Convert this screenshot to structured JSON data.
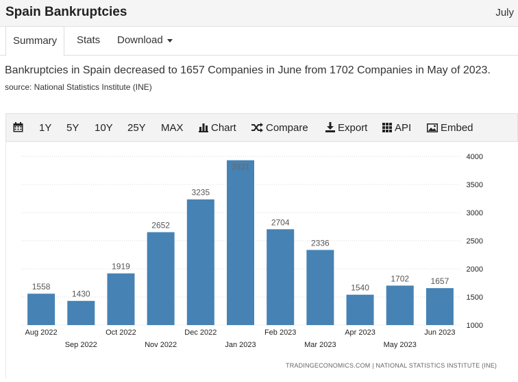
{
  "header": {
    "title": "Spain Bankruptcies",
    "date": "July"
  },
  "tabs": [
    {
      "label": "Summary",
      "active": true
    },
    {
      "label": "Stats",
      "active": false
    },
    {
      "label": "Download",
      "active": false
    }
  ],
  "summary": {
    "text": "Bankruptcies in Spain decreased to 1657 Companies in June from 1702 Companies in May of 2023.",
    "source": "source: National Statistics Institute (INE)"
  },
  "toolbar": {
    "calendar_icon": "calendar-icon",
    "ranges": [
      "1Y",
      "5Y",
      "10Y",
      "25Y",
      "MAX"
    ],
    "chart_label": "Chart",
    "compare_label": "Compare",
    "export_label": "Export",
    "api_label": "API",
    "embed_label": "Embed"
  },
  "chart_data": {
    "type": "bar",
    "categories": [
      "Aug 2022",
      "Sep 2022",
      "Oct 2022",
      "Nov 2022",
      "Dec 2022",
      "Jan 2023",
      "Feb 2023",
      "Mar 2023",
      "Apr 2023",
      "May 2023",
      "Jun 2023"
    ],
    "values": [
      1558,
      1430,
      1919,
      2652,
      3235,
      3931,
      2704,
      2336,
      1540,
      1702,
      1657
    ],
    "data_labels": [
      "1558",
      "1430",
      "1919",
      "2652",
      "3235",
      "3931",
      "2704",
      "2336",
      "1540",
      "1702",
      "1657"
    ],
    "yticks": [
      "1000",
      "1500",
      "2000",
      "2500",
      "3000",
      "3500",
      "4000"
    ],
    "ylim": [
      1000,
      4000
    ],
    "y_axis_side": "right",
    "grid": true,
    "bar_color": "#4682b4",
    "credit": "TRADINGECONOMICS.COM  |  NATIONAL STATISTICS INSTITUTE (INE)"
  }
}
